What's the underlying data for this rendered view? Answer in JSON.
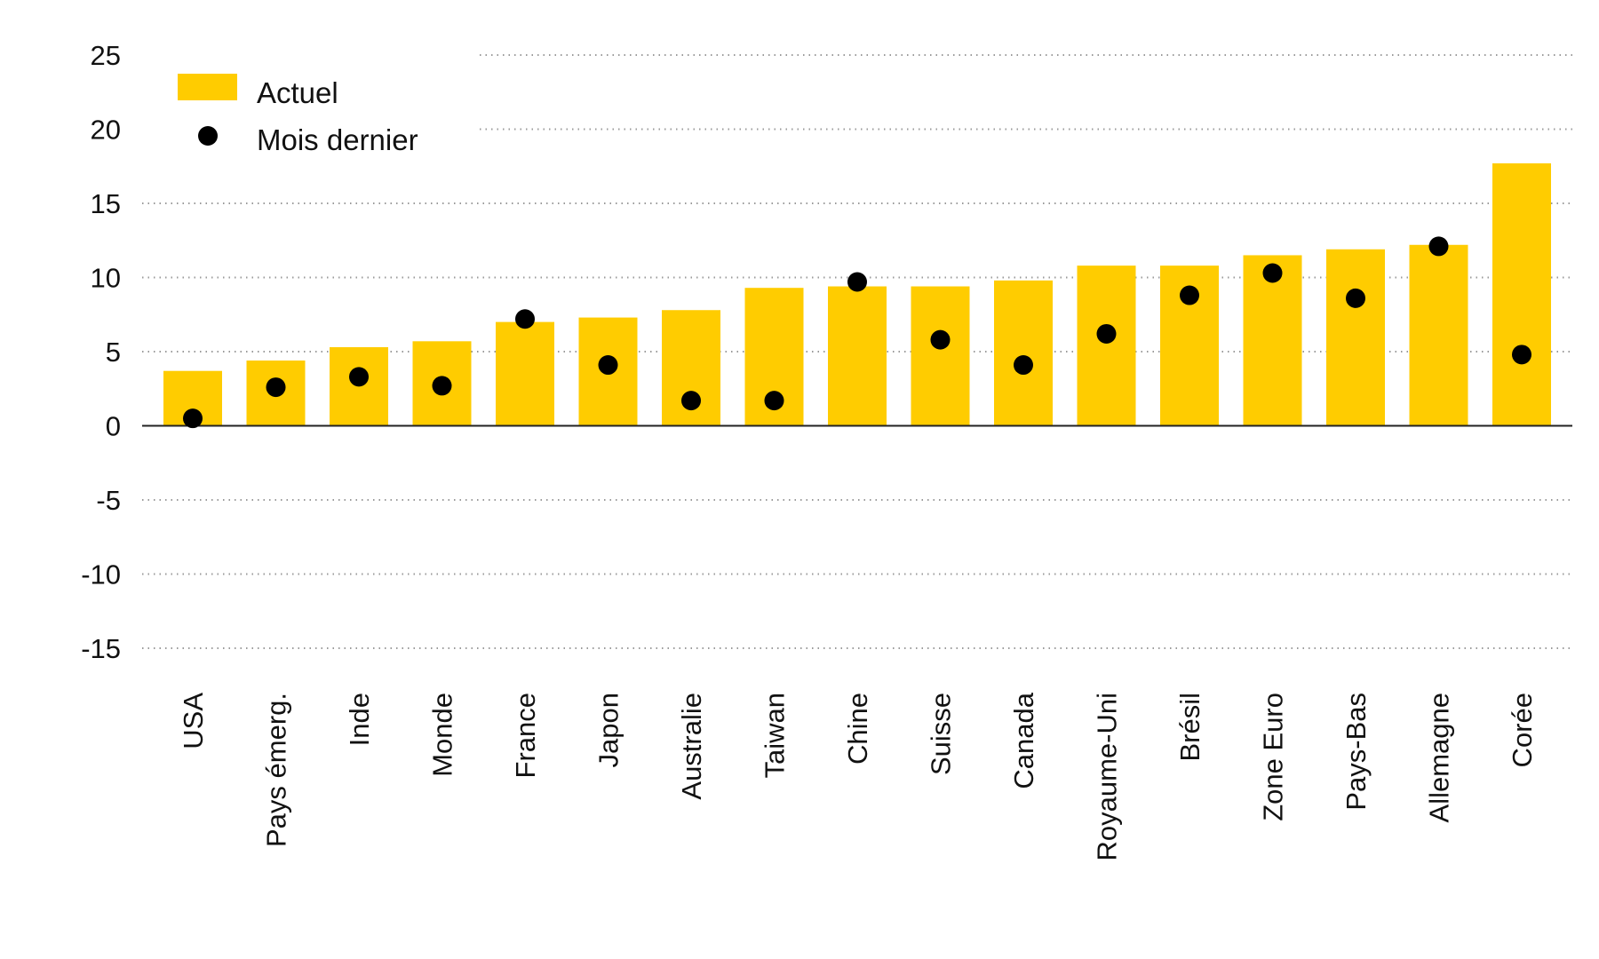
{
  "chart_data": {
    "type": "bar",
    "title": "",
    "xlabel": "",
    "ylabel": "",
    "ylim": [
      -15,
      25
    ],
    "yticks": [
      25,
      20,
      15,
      10,
      5,
      0,
      -5,
      -10,
      -15
    ],
    "grid": true,
    "legend_position": "top-left",
    "categories": [
      "USA",
      "Pays émerg.",
      "Inde",
      "Monde",
      "France",
      "Japon",
      "Australie",
      "Taiwan",
      "Chine",
      "Suisse",
      "Canada",
      "Royaume-Uni",
      "Brésil",
      "Zone Euro",
      "Pays-Bas",
      "Allemagne",
      "Corée"
    ],
    "series": [
      {
        "name": "Actuel",
        "type": "bar",
        "color": "#FFCC00",
        "values": [
          3.7,
          4.4,
          5.3,
          5.7,
          7.0,
          7.3,
          7.8,
          9.3,
          9.4,
          9.4,
          9.8,
          10.8,
          10.8,
          11.5,
          11.9,
          12.2,
          17.7
        ]
      },
      {
        "name": "Mois dernier",
        "type": "marker",
        "color": "#000000",
        "values": [
          0.5,
          2.6,
          3.3,
          2.7,
          7.2,
          4.1,
          1.7,
          1.7,
          9.7,
          5.8,
          4.1,
          6.2,
          8.8,
          10.3,
          8.6,
          12.1,
          4.8
        ]
      }
    ]
  }
}
